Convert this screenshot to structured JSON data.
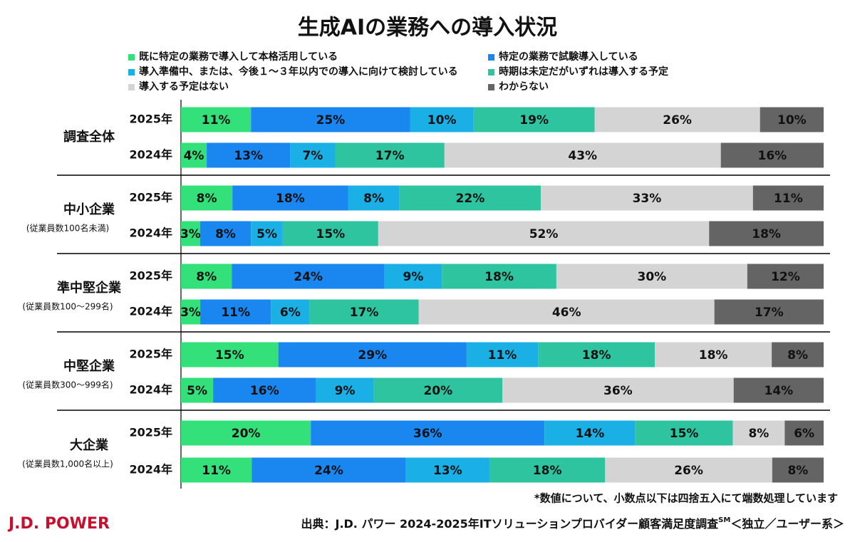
{
  "chart_data": {
    "type": "stacked-bar",
    "orientation": "horizontal",
    "title": "生成AIの業務への導入状況",
    "categories": [
      "2025年",
      "2024年",
      "2025年",
      "2024年",
      "2025年",
      "2024年",
      "2025年",
      "2024年",
      "2025年",
      "2024年"
    ],
    "groups": [
      {
        "label": "調査全体"
      },
      {
        "label": "中小企業",
        "note": "(従業員数100名未満)"
      },
      {
        "label": "準中堅企業",
        "note": "(従業員数100～299名)"
      },
      {
        "label": "中堅企業",
        "note": "(従業員数300～999名)"
      },
      {
        "label": "大企業",
        "note": "(従業員数1,000名以上)"
      }
    ],
    "series": [
      {
        "name": "既に特定の業務で導入して本格活用している",
        "color": "#33e07a",
        "values": [
          11,
          4,
          8,
          3,
          8,
          3,
          15,
          5,
          20,
          11
        ],
        "value_labels": [
          "11%",
          "4%",
          "8%",
          "3%",
          "8%",
          "3%",
          "15%",
          "5%",
          "20%",
          "11%"
        ]
      },
      {
        "name": "特定の業務で試験導入している",
        "color": "#1a86f0",
        "values": [
          25,
          13,
          18,
          8,
          24,
          11,
          29,
          16,
          36,
          24
        ],
        "value_labels": [
          "25%",
          "13%",
          "18%",
          "8%",
          "24%",
          "11%",
          "29%",
          "16%",
          "36%",
          "24%"
        ]
      },
      {
        "name": "導入準備中、または、今後１～３年以内での導入に向けて検討している",
        "color": "#1ab0e6",
        "values": [
          10,
          7,
          8,
          5,
          9,
          6,
          11,
          9,
          14,
          13
        ],
        "value_labels": [
          "10%",
          "7%",
          "8%",
          "5%",
          "9%",
          "6%",
          "11%",
          "9%",
          "14%",
          "13%"
        ]
      },
      {
        "name": "時期は未定だがいずれは導入する予定",
        "color": "#2ec4a0",
        "values": [
          19,
          17,
          22,
          15,
          18,
          17,
          18,
          20,
          15,
          18
        ],
        "value_labels": [
          "19%",
          "17%",
          "22%",
          "15%",
          "18%",
          "17%",
          "18%",
          "20%",
          "15%",
          "18%"
        ]
      },
      {
        "name": "導入する予定はない",
        "color": "#d4d4d4",
        "values": [
          26,
          43,
          33,
          52,
          30,
          46,
          18,
          36,
          8,
          26
        ],
        "value_labels": [
          "26%",
          "43%",
          "33%",
          "52%",
          "30%",
          "46%",
          "18%",
          "36%",
          "8%",
          "26%"
        ]
      },
      {
        "name": "わからない",
        "color": "#646464",
        "values": [
          10,
          16,
          11,
          18,
          12,
          17,
          8,
          14,
          6,
          8
        ],
        "value_labels": [
          "10%",
          "16%",
          "11%",
          "18%",
          "12%",
          "17%",
          "8%",
          "14%",
          "6%",
          "8%"
        ]
      }
    ],
    "footnote": "*数値について、小数点以下は四捨五入にて端数処理しています",
    "source": [
      "出典：J.D. パワー 2024-2025年ITソリューションプロバイダー顧客満足度調査",
      "SM",
      "＜独立／ユーザー系＞"
    ],
    "logo": "J.D. POWER"
  }
}
